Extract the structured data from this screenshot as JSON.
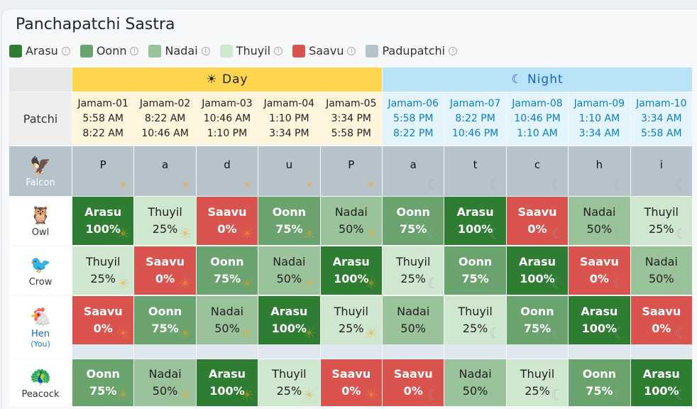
{
  "title": "Panchapatchi Sastra",
  "legend": [
    {
      "label": "Arasu",
      "color": "#2e7d32"
    },
    {
      "label": "Oonn",
      "color": "#6aa36d"
    },
    {
      "label": "Nadai",
      "color": "#9bc39b"
    },
    {
      "label": "Thuyil",
      "color": "#cfe6cf"
    },
    {
      "label": "Saavu",
      "color": "#d9534f"
    },
    {
      "label": "Padupatchi",
      "color": "#b7c3cb"
    }
  ],
  "header": {
    "day": "☀ Day",
    "night": "☾ Night",
    "patchi": "Patchi"
  },
  "jamams": [
    {
      "name": "Jamam-01",
      "start": "5:58 AM",
      "end": "8:22 AM",
      "period": "day"
    },
    {
      "name": "Jamam-02",
      "start": "8:22 AM",
      "end": "10:46 AM",
      "period": "day"
    },
    {
      "name": "Jamam-03",
      "start": "10:46 AM",
      "end": "1:10 PM",
      "period": "day"
    },
    {
      "name": "Jamam-04",
      "start": "1:10 PM",
      "end": "3:34 PM",
      "period": "day"
    },
    {
      "name": "Jamam-05",
      "start": "3:34 PM",
      "end": "5:58 PM",
      "period": "day"
    },
    {
      "name": "Jamam-06",
      "start": "5:58 PM",
      "end": "8:22 PM",
      "period": "night"
    },
    {
      "name": "Jamam-07",
      "start": "8:22 PM",
      "end": "10:46 PM",
      "period": "night"
    },
    {
      "name": "Jamam-08",
      "start": "10:46 PM",
      "end": "1:10 AM",
      "period": "night"
    },
    {
      "name": "Jamam-09",
      "start": "1:10 AM",
      "end": "3:34 AM",
      "period": "night"
    },
    {
      "name": "Jamam-10",
      "start": "3:34 AM",
      "end": "5:58 AM",
      "period": "night"
    }
  ],
  "falcon": {
    "name": "Falcon",
    "icon": "falcon-icon",
    "letters": [
      "P",
      "a",
      "d",
      "u",
      "P",
      "a",
      "t",
      "c",
      "h",
      "i"
    ]
  },
  "birds": [
    {
      "name": "Owl",
      "icon": "owl-icon",
      "glyph": "🦉",
      "you": "",
      "activities": [
        [
          "Arasu",
          "100%"
        ],
        [
          "Thuyil",
          "25%"
        ],
        [
          "Saavu",
          "0%"
        ],
        [
          "Oonn",
          "75%"
        ],
        [
          "Nadai",
          "50%"
        ],
        [
          "Oonn",
          "75%"
        ],
        [
          "Arasu",
          "100%"
        ],
        [
          "Saavu",
          "0%"
        ],
        [
          "Nadai",
          "50%"
        ],
        [
          "Thuyil",
          "25%"
        ]
      ]
    },
    {
      "name": "Crow",
      "icon": "crow-icon",
      "glyph": "🐦",
      "you": "",
      "activities": [
        [
          "Thuyil",
          "25%"
        ],
        [
          "Saavu",
          "0%"
        ],
        [
          "Oonn",
          "75%"
        ],
        [
          "Nadai",
          "50%"
        ],
        [
          "Arasu",
          "100%"
        ],
        [
          "Thuyil",
          "25%"
        ],
        [
          "Oonn",
          "75%"
        ],
        [
          "Arasu",
          "100%"
        ],
        [
          "Saavu",
          "0%"
        ],
        [
          "Nadai",
          "50%"
        ]
      ]
    },
    {
      "name": "Hen",
      "icon": "hen-icon",
      "glyph": "🐔",
      "you": "(You)",
      "activities": [
        [
          "Saavu",
          "0%"
        ],
        [
          "Oonn",
          "75%"
        ],
        [
          "Nadai",
          "50%"
        ],
        [
          "Arasu",
          "100%"
        ],
        [
          "Thuyil",
          "25%"
        ],
        [
          "Nadai",
          "50%"
        ],
        [
          "Thuyil",
          "25%"
        ],
        [
          "Oonn",
          "75%"
        ],
        [
          "Arasu",
          "100%"
        ],
        [
          "Saavu",
          "0%"
        ]
      ]
    },
    {
      "name": "Peacock",
      "icon": "peacock-icon",
      "glyph": "🦚",
      "you": "",
      "activities": [
        [
          "Oonn",
          "75%"
        ],
        [
          "Nadai",
          "50%"
        ],
        [
          "Arasu",
          "100%"
        ],
        [
          "Thuyil",
          "25%"
        ],
        [
          "Saavu",
          "0%"
        ],
        [
          "Saavu",
          "0%"
        ],
        [
          "Nadai",
          "50%"
        ],
        [
          "Thuyil",
          "25%"
        ],
        [
          "Oonn",
          "75%"
        ],
        [
          "Arasu",
          "100%"
        ]
      ]
    }
  ],
  "colors": {
    "Arasu": "#2e7d32",
    "Oonn": "#6aa36d",
    "Nadai": "#9bc39b",
    "Thuyil": "#cfe6cf",
    "Saavu": "#d9534f"
  }
}
